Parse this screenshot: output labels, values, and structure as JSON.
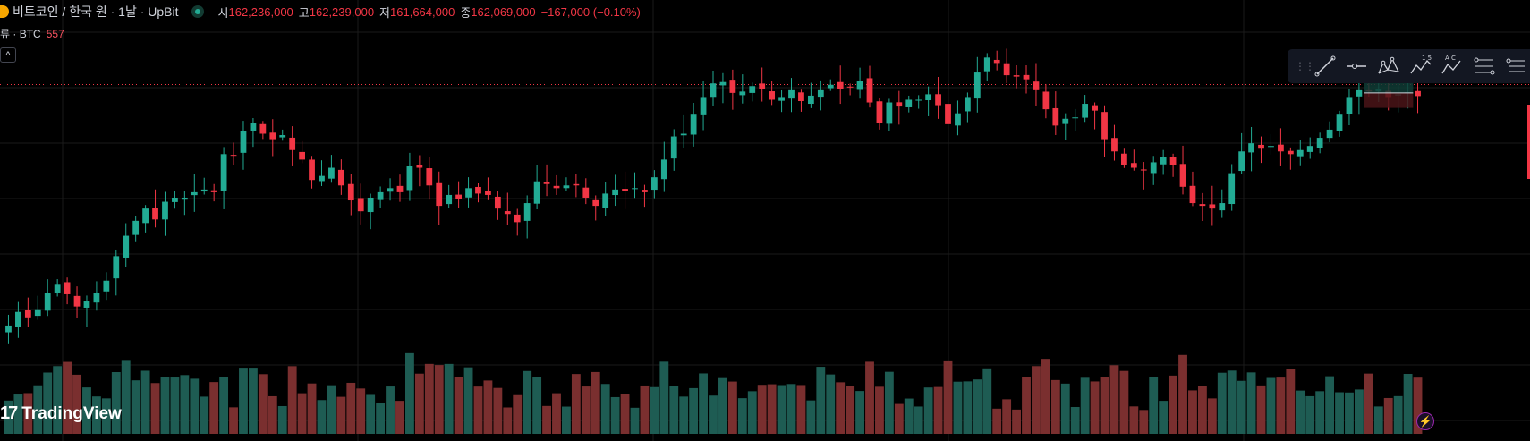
{
  "legend": {
    "symbol_title": "비트코인 / 한국 원 · 1날 · UpBit",
    "open_label": "시",
    "open_value": "162,236,000",
    "high_label": "고",
    "high_value": "162,239,000",
    "low_label": "저",
    "low_value": "161,664,000",
    "close_label": "종",
    "close_value": "162,069,000",
    "change": "−167,000 (−0.10%)"
  },
  "volume_legend": {
    "label": "류 · BTC",
    "value": "557"
  },
  "collapse_button": "^",
  "drawing_toolbar": {
    "tools": [
      "trend-line-icon",
      "horizontal-ray-icon",
      "pattern-icon",
      "elliott-wave-icon",
      "abcd-pattern-icon",
      "fib-retracement-icon",
      "more-icon"
    ],
    "label_elliott": "1 5",
    "label_abcd": "A C"
  },
  "brand": {
    "logo": "17",
    "name": "TradingView"
  },
  "colors": {
    "up": "#22ab94",
    "down": "#f23645",
    "up_volume": "#1e5c53",
    "down_volume": "#7a2f2f",
    "background": "#000000",
    "grid": "#1a1a1a"
  },
  "chart_data": {
    "type": "candlestick",
    "symbol": "비트코인 / 한국 원",
    "interval": "1날",
    "exchange": "UpBit",
    "last_close": 162069000,
    "grid": true,
    "candles_close": [
      145.2,
      146.2,
      145.8,
      146.4,
      147.6,
      148.2,
      147.5,
      146.6,
      147.0,
      147.6,
      148.5,
      150.3,
      151.8,
      152.9,
      153.8,
      153.0,
      154.3,
      154.6,
      154.6,
      155.0,
      155.2,
      155.0,
      157.8,
      157.7,
      159.5,
      160.1,
      159.3,
      158.9,
      159.2,
      158.1,
      157.4,
      155.9,
      156.2,
      156.8,
      155.5,
      154.4,
      153.6,
      154.6,
      155.0,
      155.3,
      155.0,
      156.9,
      156.8,
      155.5,
      154.0,
      154.8,
      154.5,
      155.3,
      154.9,
      154.8,
      153.8,
      153.4,
      152.8,
      154.2,
      155.8,
      155.6,
      155.3,
      155.5,
      155.5,
      154.6,
      154.0,
      154.9,
      155.2,
      155.1,
      155.3,
      155.0,
      156.1,
      157.4,
      159.1,
      159.3,
      160.7,
      162.0,
      163.0,
      163.1,
      162.3,
      162.4,
      162.8,
      162.6,
      161.8,
      162.0,
      162.5,
      161.7,
      162.1,
      162.5,
      162.9,
      162.6,
      162.7,
      163.2,
      161.6,
      160.1,
      161.6,
      161.3,
      161.8,
      161.8,
      162.2,
      161.4,
      160.0,
      160.8,
      162.0,
      163.8,
      164.9,
      164.5,
      163.6,
      163.5,
      163.3,
      162.5,
      161.1,
      159.9,
      160.4,
      160.5,
      161.5,
      161.0,
      158.9,
      158.0,
      157.0,
      156.8,
      156.6,
      157.2,
      157.6,
      157.0,
      155.4,
      154.2,
      154.0,
      153.8,
      154.2,
      156.4,
      158.0,
      158.6,
      158.2,
      158.4,
      158.0,
      157.8,
      158.1,
      158.4,
      159.0,
      159.6,
      160.7,
      162.0,
      162.5,
      162.4,
      162.6,
      162.0,
      162.2,
      162.35,
      162.069
    ]
  }
}
